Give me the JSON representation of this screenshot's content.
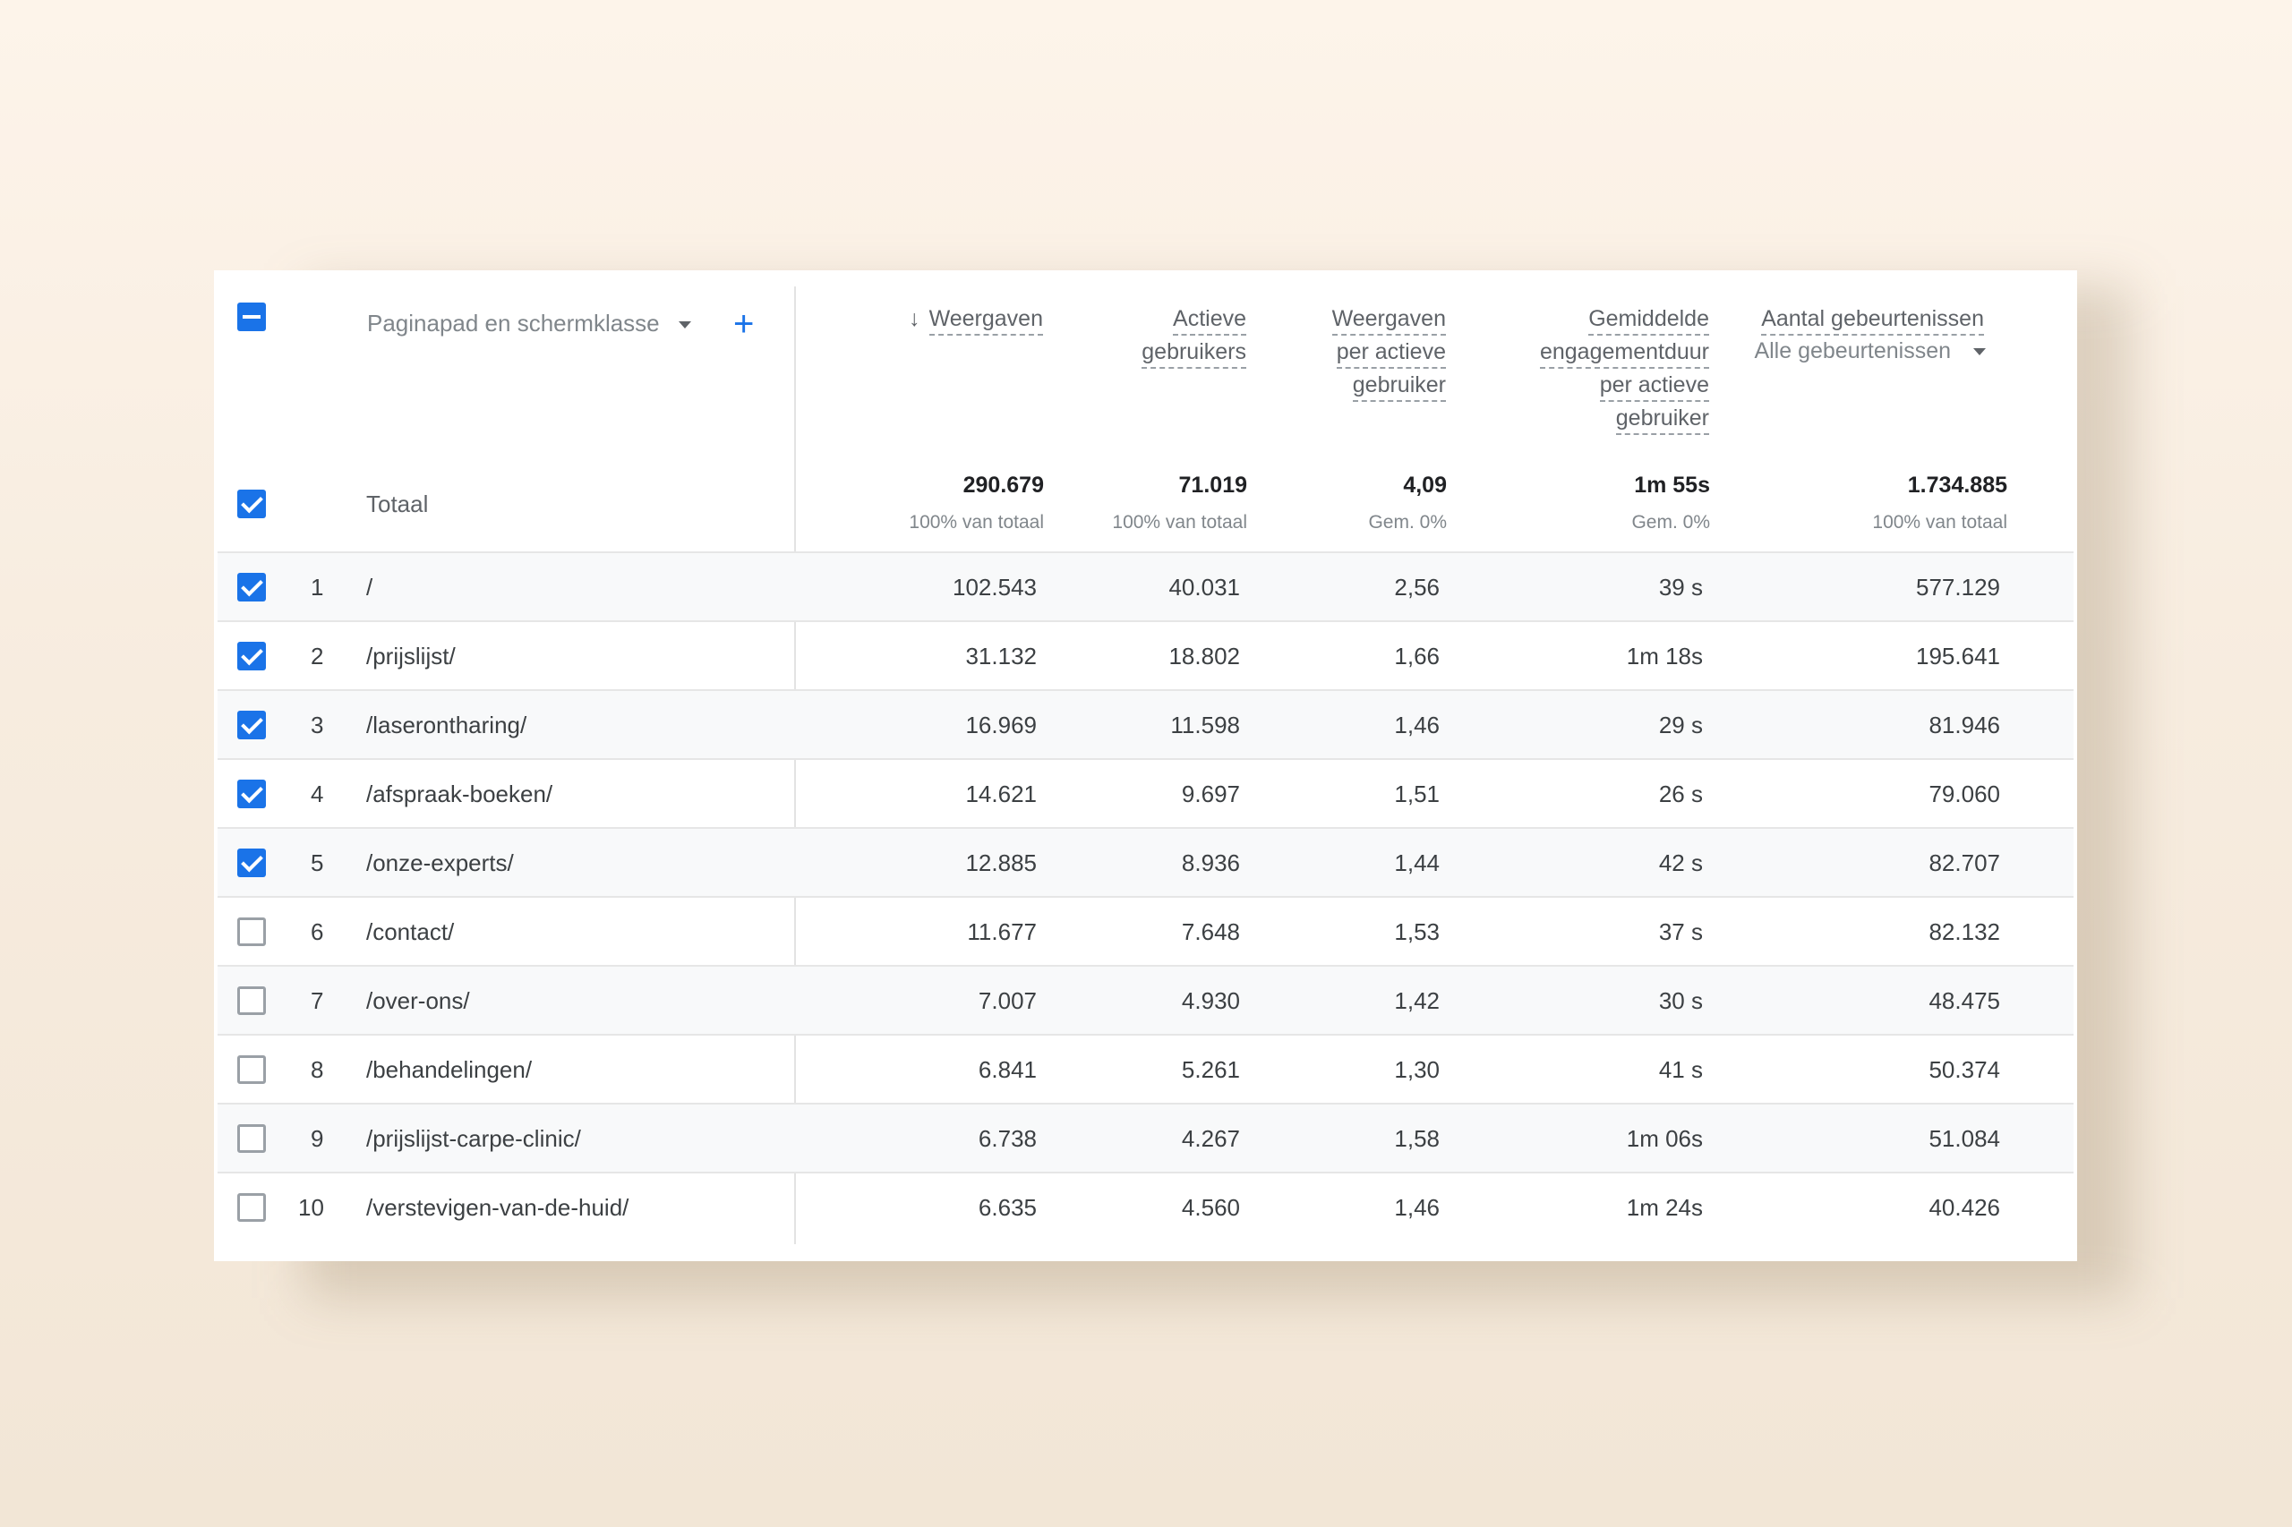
{
  "dimension": {
    "label": "Paginapad en schermklasse",
    "add_label": "+"
  },
  "metrics": [
    {
      "lines": [
        "Weergaven"
      ],
      "sort": "↓"
    },
    {
      "lines": [
        "Actieve",
        "gebruikers"
      ]
    },
    {
      "lines": [
        "Weergaven",
        "per actieve",
        "gebruiker"
      ]
    },
    {
      "lines": [
        "Gemiddelde",
        "engagementduur",
        "per actieve",
        "gebruiker"
      ]
    },
    {
      "lines": [
        "Aantal gebeurtenissen"
      ],
      "filter": "Alle gebeurtenissen"
    }
  ],
  "total": {
    "label": "Totaal",
    "values": [
      "290.679",
      "71.019",
      "4,09",
      "1m 55s",
      "1.734.885"
    ],
    "subs": [
      "100% van totaal",
      "100% van totaal",
      "Gem. 0%",
      "Gem. 0%",
      "100% van totaal"
    ]
  },
  "rows": [
    {
      "index": "1",
      "path": "/",
      "checked": true,
      "values": [
        "102.543",
        "40.031",
        "2,56",
        "39 s",
        "577.129"
      ]
    },
    {
      "index": "2",
      "path": "/prijslijst/",
      "checked": true,
      "values": [
        "31.132",
        "18.802",
        "1,66",
        "1m 18s",
        "195.641"
      ]
    },
    {
      "index": "3",
      "path": "/laserontharing/",
      "checked": true,
      "values": [
        "16.969",
        "11.598",
        "1,46",
        "29 s",
        "81.946"
      ]
    },
    {
      "index": "4",
      "path": "/afspraak-boeken/",
      "checked": true,
      "values": [
        "14.621",
        "9.697",
        "1,51",
        "26 s",
        "79.060"
      ]
    },
    {
      "index": "5",
      "path": "/onze-experts/",
      "checked": true,
      "values": [
        "12.885",
        "8.936",
        "1,44",
        "42 s",
        "82.707"
      ]
    },
    {
      "index": "6",
      "path": "/contact/",
      "checked": false,
      "values": [
        "11.677",
        "7.648",
        "1,53",
        "37 s",
        "82.132"
      ]
    },
    {
      "index": "7",
      "path": "/over-ons/",
      "checked": false,
      "values": [
        "7.007",
        "4.930",
        "1,42",
        "30 s",
        "48.475"
      ]
    },
    {
      "index": "8",
      "path": "/behandelingen/",
      "checked": false,
      "values": [
        "6.841",
        "5.261",
        "1,30",
        "41 s",
        "50.374"
      ]
    },
    {
      "index": "9",
      "path": "/prijslijst-carpe-clinic/",
      "checked": false,
      "values": [
        "6.738",
        "4.267",
        "1,58",
        "1m 06s",
        "51.084"
      ]
    },
    {
      "index": "10",
      "path": "/verstevigen-van-de-huid/",
      "checked": false,
      "values": [
        "6.635",
        "4.560",
        "1,46",
        "1m 24s",
        "40.426"
      ]
    }
  ],
  "colors": {
    "accent": "#1a73e8",
    "row_alt": "#f8f9fa",
    "divider": "#e6e6e6"
  }
}
